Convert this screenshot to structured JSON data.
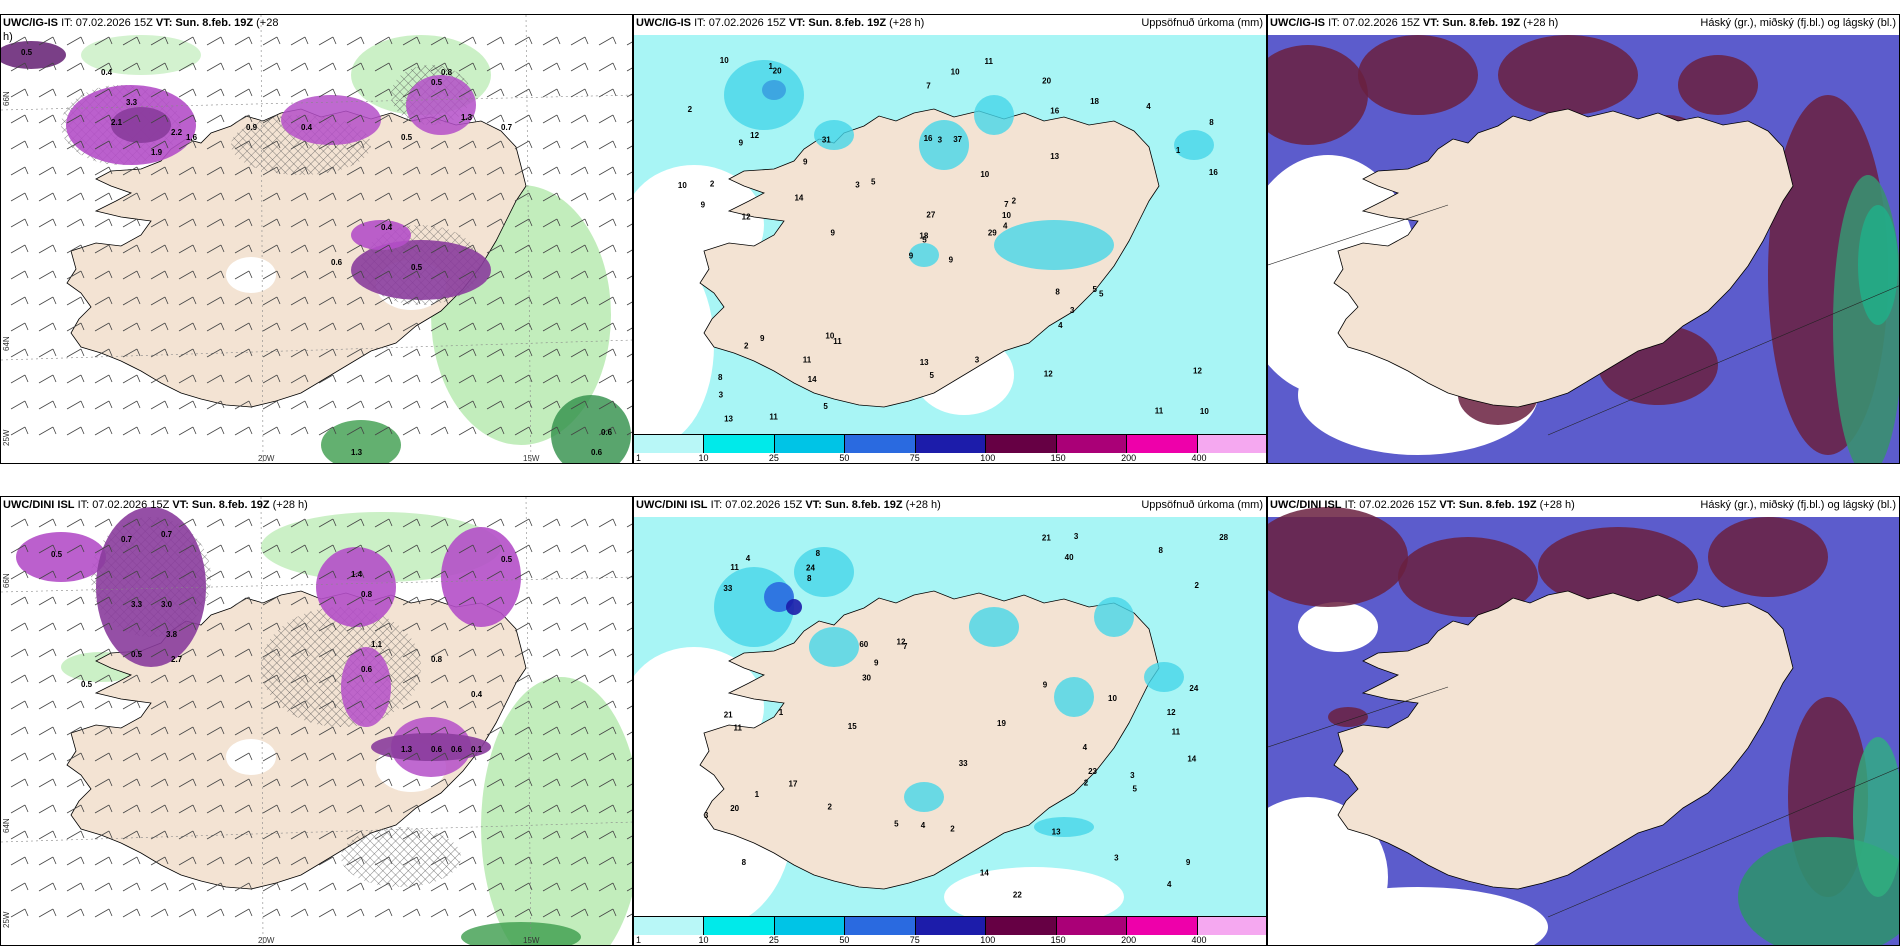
{
  "panels": [
    {
      "id": "p1",
      "title_model": "UWC/IG-IS",
      "title_it": "IT: 07.02.2026 15Z",
      "title_vt": "VT: Sun. 8.feb. 19Z",
      "title_lead": "(+28",
      "title_lead2": "h)",
      "right_title": "",
      "lon_labels": [
        "20W",
        "15W"
      ],
      "lat_labels": [
        "66N",
        "64N",
        "25W"
      ],
      "values": [
        "0.5",
        "0.4",
        "2.1",
        "3.3",
        "2.2",
        "1.9",
        "1.6",
        "0.9",
        "1.3",
        "0.7",
        "0.8",
        "0.5",
        "0.4",
        "0.6",
        "0.5",
        "1.3",
        "0.6",
        "0.6",
        "0.4",
        "0.5"
      ]
    },
    {
      "id": "p2",
      "title_model": "UWC/IG-IS",
      "title_it": "IT: 07.02.2026 15Z",
      "title_vt": "VT: Sun. 8.feb. 19Z",
      "title_lead": "(+28 h)",
      "right_title": "Uppsöfnuð úrkoma (mm)",
      "values": [
        "9",
        "9",
        "5",
        "8",
        "7",
        "11",
        "20",
        "37",
        "16",
        "29",
        "20",
        "10",
        "12",
        "8",
        "9",
        "13",
        "11",
        "16",
        "10",
        "9",
        "5",
        "3",
        "14",
        "3",
        "2",
        "5",
        "12",
        "7",
        "9",
        "8",
        "16",
        "18",
        "13",
        "27",
        "31",
        "18",
        "10",
        "11",
        "12",
        "5",
        "11",
        "3",
        "14",
        "4",
        "5",
        "10",
        "10",
        "13",
        "5",
        "4",
        "2",
        "1",
        "2",
        "3",
        "12",
        "11",
        "1",
        "10",
        "3",
        "4",
        "10",
        "9",
        "2",
        "9"
      ],
      "colorbar_ticks": [
        "1",
        "10",
        "25",
        "50",
        "75",
        "100",
        "150",
        "200",
        "400"
      ]
    },
    {
      "id": "p3",
      "title_model": "UWC/IG-IS",
      "title_it": "IT: 07.02.2026 15Z",
      "title_vt": "VT: Sun. 8.feb. 19Z",
      "title_lead": "(+28 h)",
      "right_title": "Háský (gr.), miðský (fj.bl.) og lágský (bl.)"
    },
    {
      "id": "p4",
      "title_model": "UWC/DINI ISL",
      "title_it": "IT: 07.02.2026 15Z",
      "title_vt": "VT: Sun. 8.feb. 19Z",
      "title_lead": "(+28 h)",
      "right_title": "",
      "lon_labels": [
        "20W",
        "15W"
      ],
      "lat_labels": [
        "66N",
        "64N",
        "25W"
      ],
      "values": [
        "0.5",
        "0.7",
        "0.7",
        "3.3",
        "3.0",
        "3.8",
        "2.7",
        "0.5",
        "0.5",
        "1.4",
        "0.6",
        "0.8",
        "1.1",
        "0.6",
        "0.8",
        "0.4",
        "1.3",
        "0.6",
        "0.1",
        "0.5"
      ]
    },
    {
      "id": "p5",
      "title_model": "UWC/DINI ISL",
      "title_it": "IT: 07.02.2026 15Z",
      "title_vt": "VT: Sun. 8.feb. 19Z",
      "title_lead": "(+28 h)",
      "right_title": "Uppsöfnuð úrkoma (mm)",
      "values": [
        "4",
        "11",
        "8",
        "8",
        "7",
        "3",
        "20",
        "40",
        "60",
        "22",
        "33",
        "21",
        "11",
        "9",
        "5",
        "24",
        "33",
        "19",
        "12",
        "17",
        "28",
        "8",
        "30",
        "14",
        "21",
        "24",
        "23",
        "11",
        "8",
        "10",
        "14",
        "13",
        "9",
        "15",
        "12",
        "5",
        "2",
        "1",
        "2",
        "1",
        "2",
        "3",
        "4",
        "4",
        "3",
        "2",
        "3",
        "4",
        "9"
      ],
      "colorbar_ticks": [
        "1",
        "10",
        "25",
        "50",
        "75",
        "100",
        "150",
        "200",
        "400"
      ]
    },
    {
      "id": "p6",
      "title_model": "UWC/DINI ISL",
      "title_it": "IT: 07.02.2026 15Z",
      "title_vt": "VT: Sun. 8.feb. 19Z",
      "title_lead": "(+28 h)",
      "right_title": "Háský (gr.), miðský (fj.bl.) og lágský (bl.)"
    }
  ],
  "colorbar_colors": [
    "#b8f7f7",
    "#00eaea",
    "#00c4e6",
    "#2a6ae0",
    "#1c1caa",
    "#660044",
    "#aa0077",
    "#ee00aa",
    "#f5a8f0"
  ],
  "colors": {
    "land": "#f3e3d3",
    "sea_precip": "#a8f5f5",
    "rain_green": "#a8e6a0",
    "snow_purple": "#b44fc8",
    "high_cloud": "#3a8f70",
    "mid_cloud": "#6a2040",
    "low_cloud": "#5c5ccc"
  }
}
